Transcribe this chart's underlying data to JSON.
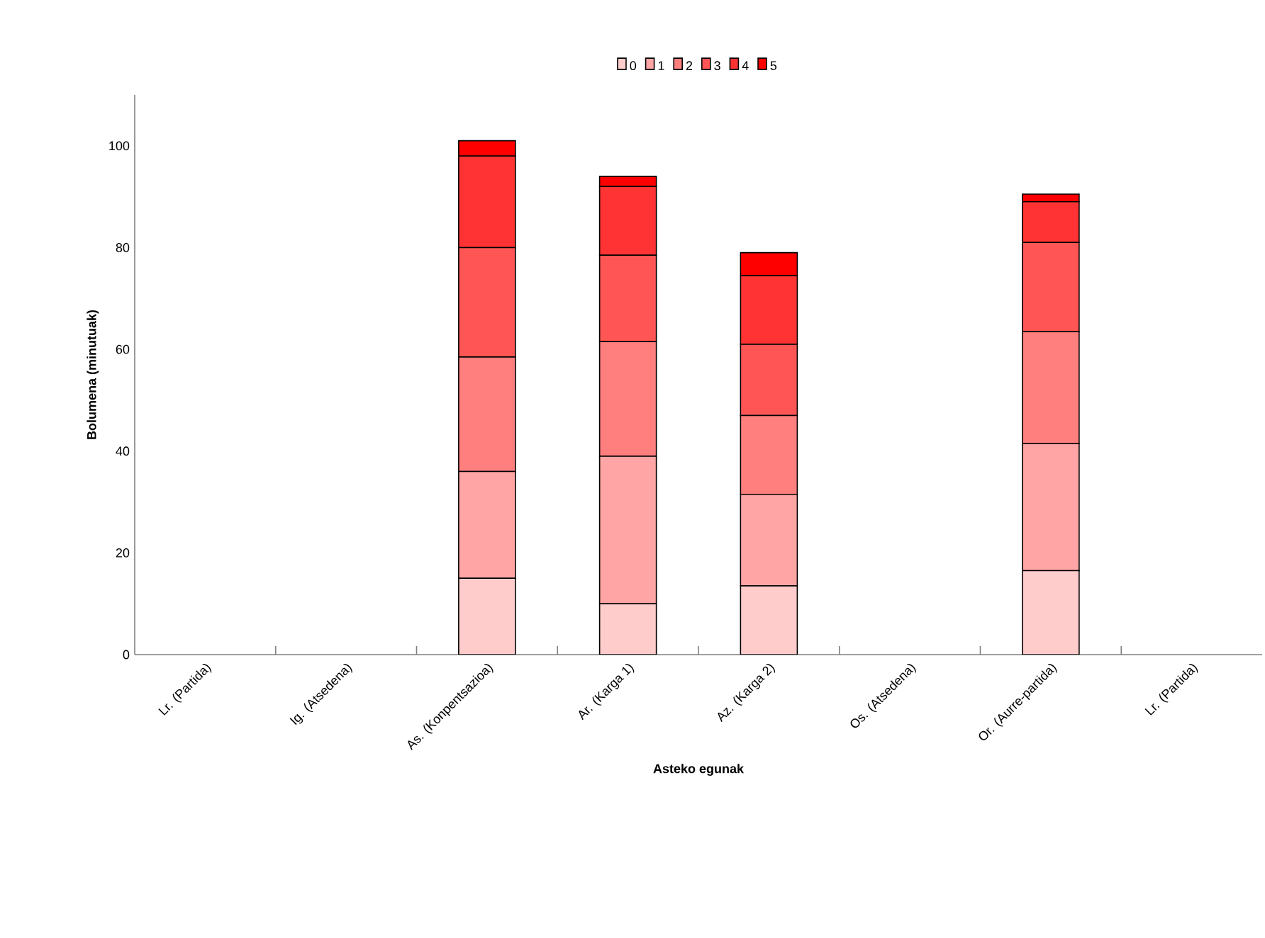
{
  "chart_data": {
    "type": "bar",
    "stacked": true,
    "xlabel": "Asteko egunak",
    "ylabel": "Bolumena (minutuak)",
    "categories": [
      "Lr. (Partida)",
      "Ig. (Atsedena)",
      "As. (Konpentsazioa)",
      "Ar. (Karga 1)",
      "Az. (Karga 2)",
      "Os. (Atsedena)",
      "Or. (Aurre-partida)",
      "Lr. (Partida)"
    ],
    "series": [
      {
        "name": "0",
        "color": "#ffcccc",
        "values": [
          null,
          null,
          15,
          10,
          13.5,
          null,
          16.5,
          null
        ]
      },
      {
        "name": "1",
        "color": "#ffa5a5",
        "values": [
          null,
          null,
          21,
          29,
          18,
          null,
          25,
          null
        ]
      },
      {
        "name": "2",
        "color": "#ff7f7f",
        "values": [
          null,
          null,
          22.5,
          22.5,
          15.5,
          null,
          22,
          null
        ]
      },
      {
        "name": "3",
        "color": "#ff5555",
        "values": [
          null,
          null,
          21.5,
          17,
          14,
          null,
          17.5,
          null
        ]
      },
      {
        "name": "4",
        "color": "#ff3333",
        "values": [
          null,
          null,
          18,
          13.5,
          13.5,
          null,
          8,
          null
        ]
      },
      {
        "name": "5",
        "color": "#ff0000",
        "values": [
          null,
          null,
          3,
          2,
          4.5,
          null,
          1.5,
          null
        ]
      }
    ],
    "ylim": [
      0,
      110
    ],
    "yticks": [
      0,
      20,
      40,
      60,
      80,
      100
    ],
    "grid": false,
    "legend": "top"
  }
}
